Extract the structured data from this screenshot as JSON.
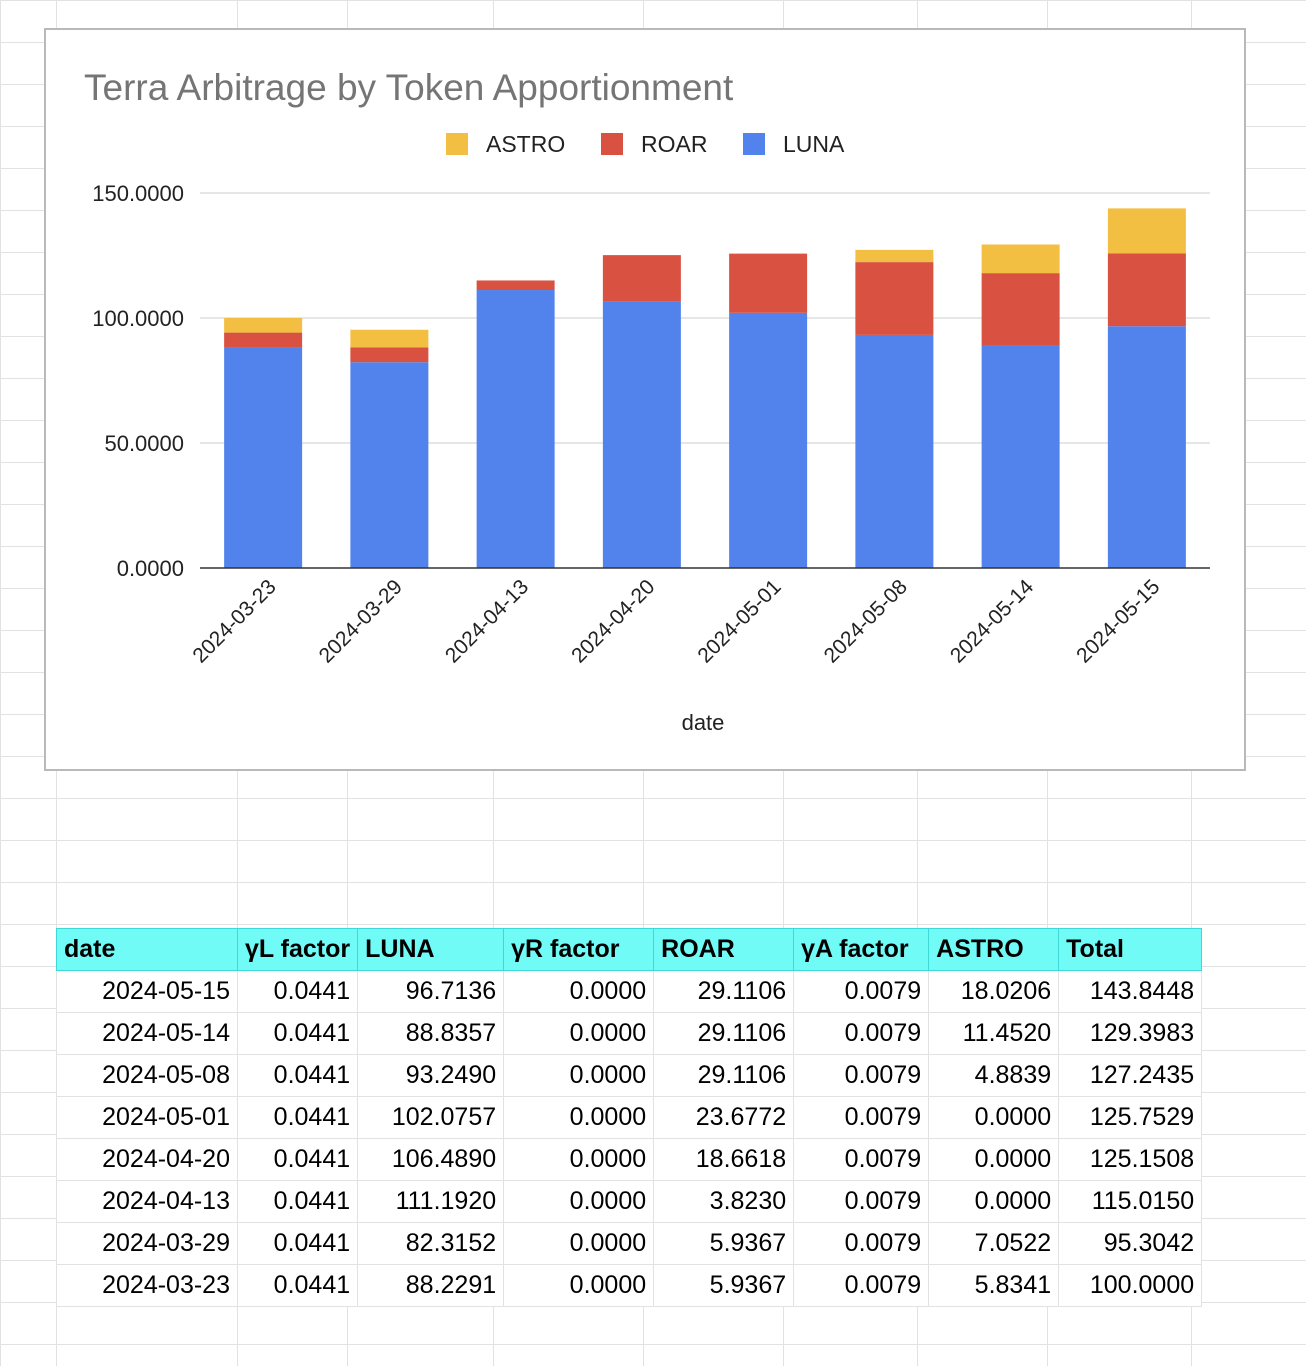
{
  "chart_data": {
    "type": "bar",
    "stacked": true,
    "title": "Terra Arbitrage by Token Apportionment",
    "xlabel": "date",
    "ylabel": "",
    "ylim": [
      0,
      150
    ],
    "yticks": [
      "0.0000",
      "50.0000",
      "100.0000",
      "150.0000"
    ],
    "ytick_values": [
      0,
      50,
      100,
      150
    ],
    "grid": true,
    "legend": "top",
    "legend_order": [
      "ASTRO",
      "ROAR",
      "LUNA"
    ],
    "categories": [
      "2024-03-23",
      "2024-03-29",
      "2024-04-13",
      "2024-04-20",
      "2024-05-01",
      "2024-05-08",
      "2024-05-14",
      "2024-05-15"
    ],
    "series": [
      {
        "name": "LUNA",
        "color": "#5283ec",
        "values": [
          88.2291,
          82.3152,
          111.192,
          106.489,
          102.0757,
          93.249,
          88.8357,
          96.7136
        ]
      },
      {
        "name": "ROAR",
        "color": "#d95140",
        "values": [
          5.9367,
          5.9367,
          3.823,
          18.6618,
          23.6772,
          29.1106,
          29.1106,
          29.1106
        ]
      },
      {
        "name": "ASTRO",
        "color": "#f3bf42",
        "values": [
          5.8341,
          7.0522,
          0.0,
          0.0,
          0.0,
          4.8839,
          11.452,
          18.0206
        ]
      }
    ]
  },
  "table": {
    "header_bg": "#70fbf7",
    "headers": [
      "date",
      "γL factor",
      "LUNA",
      "γR factor",
      "ROAR",
      "γA factor",
      "ASTRO",
      "Total"
    ],
    "rows": [
      [
        "2024-05-15",
        "0.0441",
        "96.7136",
        "0.0000",
        "29.1106",
        "0.0079",
        "18.0206",
        "143.8448"
      ],
      [
        "2024-05-14",
        "0.0441",
        "88.8357",
        "0.0000",
        "29.1106",
        "0.0079",
        "11.4520",
        "129.3983"
      ],
      [
        "2024-05-08",
        "0.0441",
        "93.2490",
        "0.0000",
        "29.1106",
        "0.0079",
        "4.8839",
        "127.2435"
      ],
      [
        "2024-05-01",
        "0.0441",
        "102.0757",
        "0.0000",
        "23.6772",
        "0.0079",
        "0.0000",
        "125.7529"
      ],
      [
        "2024-04-20",
        "0.0441",
        "106.4890",
        "0.0000",
        "18.6618",
        "0.0079",
        "0.0000",
        "125.1508"
      ],
      [
        "2024-04-13",
        "0.0441",
        "111.1920",
        "0.0000",
        "3.8230",
        "0.0079",
        "0.0000",
        "115.0150"
      ],
      [
        "2024-03-29",
        "0.0441",
        "82.3152",
        "0.0000",
        "5.9367",
        "0.0079",
        "7.0522",
        "95.3042"
      ],
      [
        "2024-03-23",
        "0.0441",
        "88.2291",
        "0.0000",
        "5.9367",
        "0.0079",
        "5.8341",
        "100.0000"
      ]
    ]
  }
}
